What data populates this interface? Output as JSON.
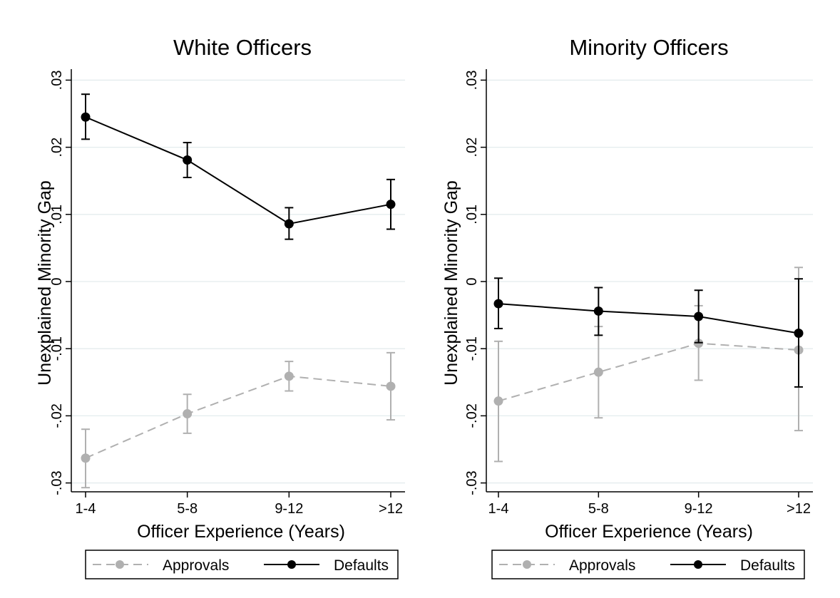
{
  "chart_data": [
    {
      "type": "line",
      "title": "White Officers",
      "xlabel": "Officer Experience (Years)",
      "ylabel": "Unexplained Minority Gap",
      "categories": [
        "1-4",
        "5-8",
        "9-12",
        ">12"
      ],
      "ylim": [
        -0.031,
        0.031
      ],
      "yticks": [
        ".03",
        ".02",
        ".01",
        "0",
        "-.01",
        "-.02",
        "-.03"
      ],
      "grid": true,
      "legend_position": "bottom",
      "series": [
        {
          "name": "Approvals",
          "color": "#b0b0b0",
          "style": "dashed",
          "values": [
            -0.0263,
            -0.0197,
            -0.0141,
            -0.0156
          ],
          "ci_low": [
            -0.0307,
            -0.0226,
            -0.0163,
            -0.0206
          ],
          "ci_high": [
            -0.022,
            -0.0168,
            -0.0119,
            -0.0106
          ]
        },
        {
          "name": "Defaults",
          "color": "#000000",
          "style": "solid",
          "values": [
            0.0245,
            0.0181,
            0.0086,
            0.0115
          ],
          "ci_low": [
            0.0212,
            0.0155,
            0.0063,
            0.0078
          ],
          "ci_high": [
            0.0279,
            0.0207,
            0.011,
            0.0152
          ]
        }
      ]
    },
    {
      "type": "line",
      "title": "Minority Officers",
      "xlabel": "Officer Experience (Years)",
      "ylabel": "Unexplained Minority Gap",
      "categories": [
        "1-4",
        "5-8",
        "9-12",
        ">12"
      ],
      "ylim": [
        -0.031,
        0.031
      ],
      "yticks": [
        ".03",
        ".02",
        ".01",
        "0",
        "-.01",
        "-.02",
        "-.03"
      ],
      "grid": true,
      "legend_position": "bottom",
      "series": [
        {
          "name": "Approvals",
          "color": "#b0b0b0",
          "style": "dashed",
          "values": [
            -0.0178,
            -0.0135,
            -0.0092,
            -0.0102
          ],
          "ci_low": [
            -0.0268,
            -0.0203,
            -0.0147,
            -0.0222
          ],
          "ci_high": [
            -0.0089,
            -0.0067,
            -0.0036,
            0.0021
          ]
        },
        {
          "name": "Defaults",
          "color": "#000000",
          "style": "solid",
          "values": [
            -0.0033,
            -0.0044,
            -0.0052,
            -0.0077
          ],
          "ci_low": [
            -0.007,
            -0.008,
            -0.0091,
            -0.0157
          ],
          "ci_high": [
            0.0005,
            -0.0009,
            -0.0013,
            0.0004
          ]
        }
      ]
    }
  ]
}
